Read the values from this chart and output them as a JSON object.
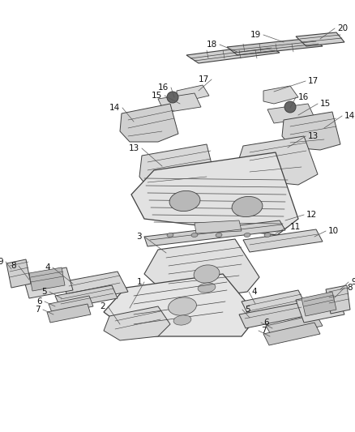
{
  "bg_color": "#ffffff",
  "line_color": "#404040",
  "label_color": "#111111",
  "font_size": 7.5,
  "part_face": "#e0e0e0",
  "part_edge": "#404040",
  "part_lw": 0.7
}
